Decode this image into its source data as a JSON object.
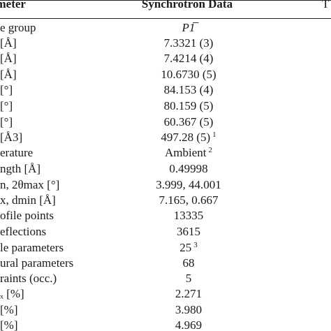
{
  "table": {
    "header": {
      "parameter": "ameter",
      "synchrotron": "Synchrotron Data",
      "third": "T"
    },
    "rows": [
      {
        "param": "e group",
        "value": "P1̅",
        "note": ""
      },
      {
        "param": "[Å]",
        "value": "7.3321 (3)",
        "note": ""
      },
      {
        "param": "[Å]",
        "value": "7.4214 (4)",
        "note": ""
      },
      {
        "param": "[Å]",
        "value": "10.6730 (5)",
        "note": ""
      },
      {
        "param": "[°]",
        "value": "84.153 (4)",
        "note": ""
      },
      {
        "param": "[°]",
        "value": "80.159 (5)",
        "note": ""
      },
      {
        "param": "[°]",
        "value": "60.367 (5)",
        "note": ""
      },
      {
        "param": "[Å3]",
        "value": "497.28 (5)",
        "note": "1"
      },
      {
        "param": "erature",
        "value": "Ambient",
        "note": "2"
      },
      {
        "param": "ngth [Å]",
        "value": "0.49998",
        "note": ""
      },
      {
        "param": "n, 2θmax [°]",
        "value": "3.999, 44.001",
        "note": ""
      },
      {
        "param": "x, dmin [Å]",
        "value": "7.165, 0.667",
        "note": ""
      },
      {
        "param": "ofile points",
        "value": "13335",
        "note": ""
      },
      {
        "param": "eflections",
        "value": "3615",
        "note": ""
      },
      {
        "param": "le parameters",
        "value": "25",
        "note": "3"
      },
      {
        "param": "ural parameters",
        "value": "68",
        "note": ""
      },
      {
        "param": "raints (occ.)",
        "value": "5",
        "note": ""
      },
      {
        "param": "ₓ [%]",
        "value": "2.271",
        "note": ""
      },
      {
        "param": "[%]",
        "value": "3.980",
        "note": ""
      },
      {
        "param": "[%]",
        "value": "4.969",
        "note": ""
      }
    ]
  }
}
